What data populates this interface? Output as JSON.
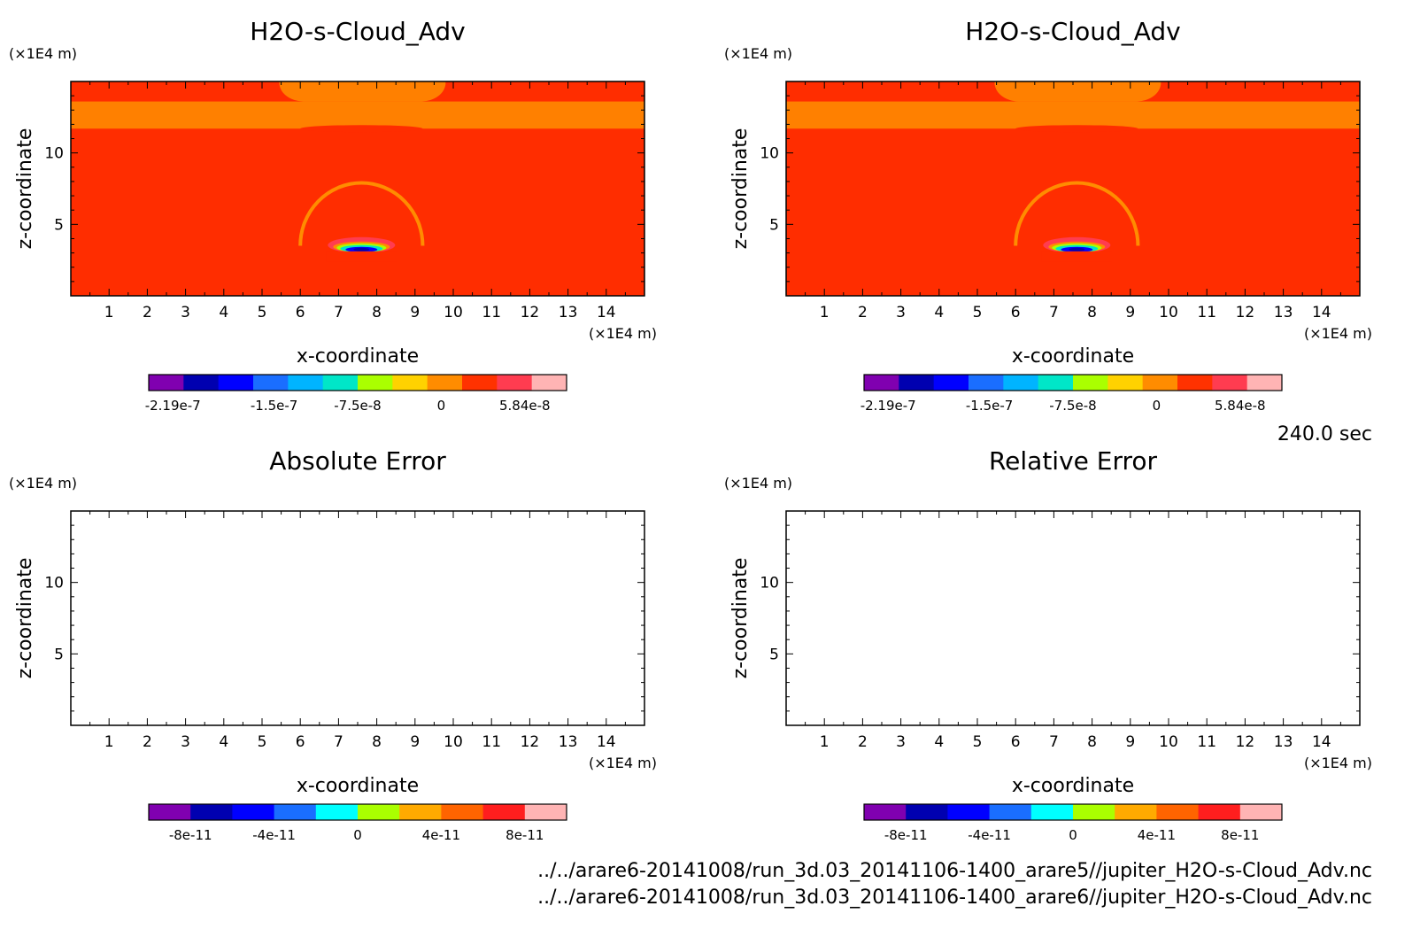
{
  "figure": {
    "time_label": "240.0 sec",
    "files": [
      "../../arare6-20141008/run_3d.03_20141106-1400_arare5//jupiter_H2O-s-Cloud_Adv.nc",
      "../../arare6-20141008/run_3d.03_20141106-1400_arare6//jupiter_H2O-s-Cloud_Adv.nc"
    ]
  },
  "chart_data": [
    {
      "type": "heatmap",
      "title": "H2O-s-Cloud_Adv",
      "xlabel": "x-coordinate",
      "ylabel": "z-coordinate",
      "x_unit": "(×1E4 m)",
      "y_unit": "(×1E4 m)",
      "xlim": [
        0,
        15
      ],
      "ylim": [
        0,
        15
      ],
      "xticks": [
        1,
        2,
        3,
        4,
        5,
        6,
        7,
        8,
        9,
        10,
        11,
        12,
        13,
        14
      ],
      "yticks": [
        5,
        10
      ],
      "field": "populated",
      "colorbar": {
        "colors": [
          "#8000b0",
          "#0000b0",
          "#0000ff",
          "#1a6eff",
          "#00b4ff",
          "#00e6c8",
          "#aaff00",
          "#ffd200",
          "#ff8c00",
          "#ff3200",
          "#ff3c50",
          "#ffb4b4"
        ],
        "ticks": [
          "-2.19e-7",
          "-1.5e-7",
          "-7.5e-8",
          "0",
          "5.84e-8"
        ]
      }
    },
    {
      "type": "heatmap",
      "title": "H2O-s-Cloud_Adv",
      "xlabel": "x-coordinate",
      "ylabel": "z-coordinate",
      "x_unit": "(×1E4 m)",
      "y_unit": "(×1E4 m)",
      "xlim": [
        0,
        15
      ],
      "ylim": [
        0,
        15
      ],
      "xticks": [
        1,
        2,
        3,
        4,
        5,
        6,
        7,
        8,
        9,
        10,
        11,
        12,
        13,
        14
      ],
      "yticks": [
        5,
        10
      ],
      "field": "populated",
      "colorbar": {
        "colors": [
          "#8000b0",
          "#0000b0",
          "#0000ff",
          "#1a6eff",
          "#00b4ff",
          "#00e6c8",
          "#aaff00",
          "#ffd200",
          "#ff8c00",
          "#ff3200",
          "#ff3c50",
          "#ffb4b4"
        ],
        "ticks": [
          "-2.19e-7",
          "-1.5e-7",
          "-7.5e-8",
          "0",
          "5.84e-8"
        ]
      }
    },
    {
      "type": "heatmap",
      "title": "Absolute Error",
      "xlabel": "x-coordinate",
      "ylabel": "z-coordinate",
      "x_unit": "(×1E4 m)",
      "y_unit": "(×1E4 m)",
      "xlim": [
        0,
        15
      ],
      "ylim": [
        0,
        15
      ],
      "xticks": [
        1,
        2,
        3,
        4,
        5,
        6,
        7,
        8,
        9,
        10,
        11,
        12,
        13,
        14
      ],
      "yticks": [
        5,
        10
      ],
      "field": "empty",
      "colorbar": {
        "colors": [
          "#8000b0",
          "#0000b0",
          "#0000ff",
          "#1a6eff",
          "#00ffff",
          "#aaff00",
          "#ffaa00",
          "#ff6400",
          "#ff1e1e",
          "#ffb4b4"
        ],
        "ticks": [
          "-8e-11",
          "-4e-11",
          "0",
          "4e-11",
          "8e-11"
        ]
      }
    },
    {
      "type": "heatmap",
      "title": "Relative Error",
      "xlabel": "x-coordinate",
      "ylabel": "z-coordinate",
      "x_unit": "(×1E4 m)",
      "y_unit": "(×1E4 m)",
      "xlim": [
        0,
        15
      ],
      "ylim": [
        0,
        15
      ],
      "xticks": [
        1,
        2,
        3,
        4,
        5,
        6,
        7,
        8,
        9,
        10,
        11,
        12,
        13,
        14
      ],
      "yticks": [
        5,
        10
      ],
      "field": "empty",
      "colorbar": {
        "colors": [
          "#8000b0",
          "#0000b0",
          "#0000ff",
          "#1a6eff",
          "#00ffff",
          "#aaff00",
          "#ffaa00",
          "#ff6400",
          "#ff1e1e",
          "#ffb4b4"
        ],
        "ticks": [
          "-8e-11",
          "-4e-11",
          "0",
          "4e-11",
          "8e-11"
        ]
      }
    }
  ]
}
